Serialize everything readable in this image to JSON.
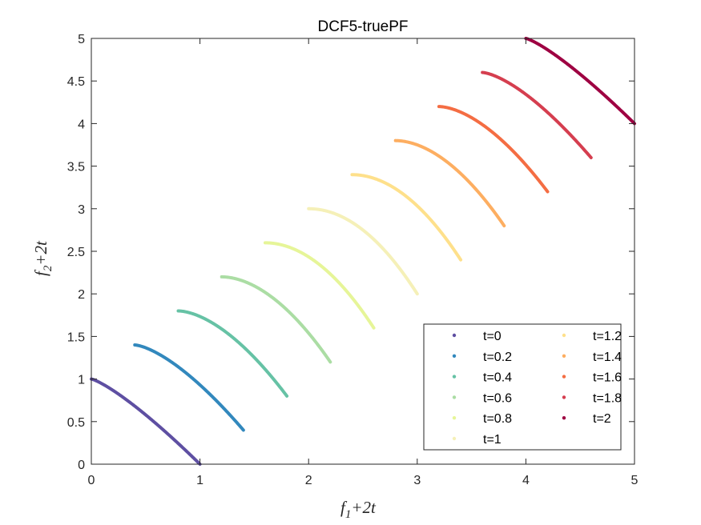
{
  "chart_data": {
    "type": "line",
    "title": "DCF5-truePF",
    "xlabel": {
      "base": "f",
      "sub": "1",
      "rest": "+2t"
    },
    "ylabel": {
      "base": "f",
      "sub": "2",
      "rest": "+2t"
    },
    "xlim": [
      0,
      5
    ],
    "ylim": [
      0,
      5
    ],
    "x_ticks": [
      "0",
      "1",
      "2",
      "3",
      "4",
      "5"
    ],
    "y_ticks": [
      "0",
      "0.5",
      "1",
      "1.5",
      "2",
      "2.5",
      "3",
      "3.5",
      "4",
      "4.5",
      "5"
    ],
    "grid": false,
    "legend_position": "bottom-right",
    "series": [
      {
        "name": "t=0",
        "t": 0,
        "color": "#5e4fa2",
        "x_start": 0.0,
        "x_end": 1.0
      },
      {
        "name": "t=0.2",
        "t": 0.2,
        "color": "#3288bd",
        "x_start": 0.4,
        "x_end": 1.4
      },
      {
        "name": "t=0.4",
        "t": 0.4,
        "color": "#66c2a5",
        "x_start": 0.8,
        "x_end": 1.8
      },
      {
        "name": "t=0.6",
        "t": 0.6,
        "color": "#abdda4",
        "x_start": 1.2,
        "x_end": 2.2
      },
      {
        "name": "t=0.8",
        "t": 0.8,
        "color": "#e6f598",
        "x_start": 1.6,
        "x_end": 2.6
      },
      {
        "name": "t=1",
        "t": 1.0,
        "color": "#f5f0b8",
        "x_start": 2.0,
        "x_end": 3.0
      },
      {
        "name": "t=1.2",
        "t": 1.2,
        "color": "#fee08b",
        "x_start": 2.4,
        "x_end": 3.4
      },
      {
        "name": "t=1.4",
        "t": 1.4,
        "color": "#fdae61",
        "x_start": 2.8,
        "x_end": 3.8
      },
      {
        "name": "t=1.6",
        "t": 1.6,
        "color": "#f46d43",
        "x_start": 3.2,
        "x_end": 4.2
      },
      {
        "name": "t=1.8",
        "t": 1.8,
        "color": "#d53e4f",
        "x_start": 3.6,
        "x_end": 4.6
      },
      {
        "name": "t=2",
        "t": 2.0,
        "color": "#9e0142",
        "x_start": 4.0,
        "x_end": 5.0
      }
    ]
  }
}
